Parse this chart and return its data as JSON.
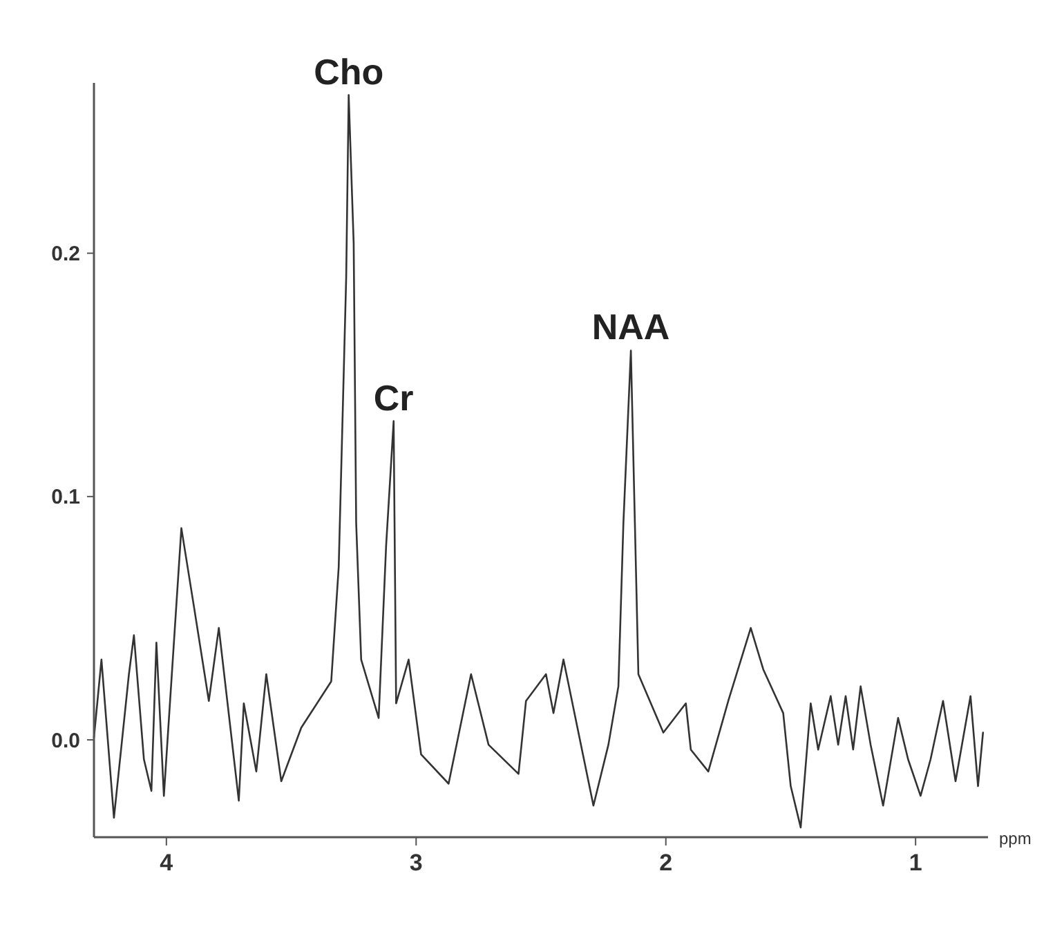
{
  "chart_data": {
    "type": "line",
    "xlabel": "ppm",
    "xlim": [
      4.29,
      0.71
    ],
    "xticks": [
      4,
      3,
      2,
      1
    ],
    "ylim": [
      -0.04,
      0.27
    ],
    "yticks": [
      {
        "value": 0,
        "label": "0.0"
      },
      0.1,
      0.2
    ],
    "grid": false,
    "marker": "none",
    "line_style": "solid",
    "x": [
      4.29,
      4.26,
      4.21,
      4.15,
      4.13,
      4.09,
      4.06,
      4.04,
      4.01,
      3.94,
      3.89,
      3.83,
      3.79,
      3.71,
      3.69,
      3.64,
      3.6,
      3.54,
      3.46,
      3.34,
      3.31,
      3.28,
      3.27,
      3.25,
      3.24,
      3.22,
      3.15,
      3.12,
      3.09,
      3.08,
      3.03,
      2.98,
      2.87,
      2.78,
      2.71,
      2.59,
      2.56,
      2.48,
      2.45,
      2.41,
      2.29,
      2.23,
      2.19,
      2.17,
      2.14,
      2.11,
      2.01,
      1.92,
      1.9,
      1.83,
      1.75,
      1.66,
      1.61,
      1.53,
      1.5,
      1.46,
      1.42,
      1.39,
      1.34,
      1.31,
      1.28,
      1.25,
      1.22,
      1.18,
      1.13,
      1.07,
      1.03,
      0.98,
      0.94,
      0.89,
      0.84,
      0.78,
      0.75,
      0.73
    ],
    "series": [
      {
        "color": "#333333",
        "values": [
          0.001,
          0.033,
          -0.032,
          0.027,
          0.043,
          -0.008,
          -0.021,
          0.04,
          -0.023,
          0.087,
          0.055,
          0.016,
          0.046,
          -0.025,
          0.015,
          -0.013,
          0.027,
          -0.017,
          0.005,
          0.024,
          0.071,
          0.19,
          0.265,
          0.204,
          0.089,
          0.033,
          0.009,
          0.08,
          0.131,
          0.015,
          0.033,
          -0.006,
          -0.018,
          0.027,
          -0.002,
          -0.014,
          0.016,
          0.027,
          0.011,
          0.033,
          -0.027,
          -0.002,
          0.022,
          0.089,
          0.16,
          0.027,
          0.003,
          0.015,
          -0.004,
          -0.013,
          0.016,
          0.046,
          0.029,
          0.011,
          -0.019,
          -0.036,
          0.015,
          -0.004,
          0.018,
          -0.002,
          0.018,
          -0.004,
          0.022,
          -0.002,
          -0.027,
          0.009,
          -0.008,
          -0.023,
          -0.008,
          0.016,
          -0.017,
          0.018,
          -0.019,
          0.003
        ]
      }
    ],
    "annotations": [
      {
        "text": "Cho",
        "x": 3.27,
        "y": 0.265
      },
      {
        "text": "Cr",
        "x": 3.09,
        "y": 0.131
      },
      {
        "text": "NAA",
        "x": 2.14,
        "y": 0.16
      }
    ]
  }
}
